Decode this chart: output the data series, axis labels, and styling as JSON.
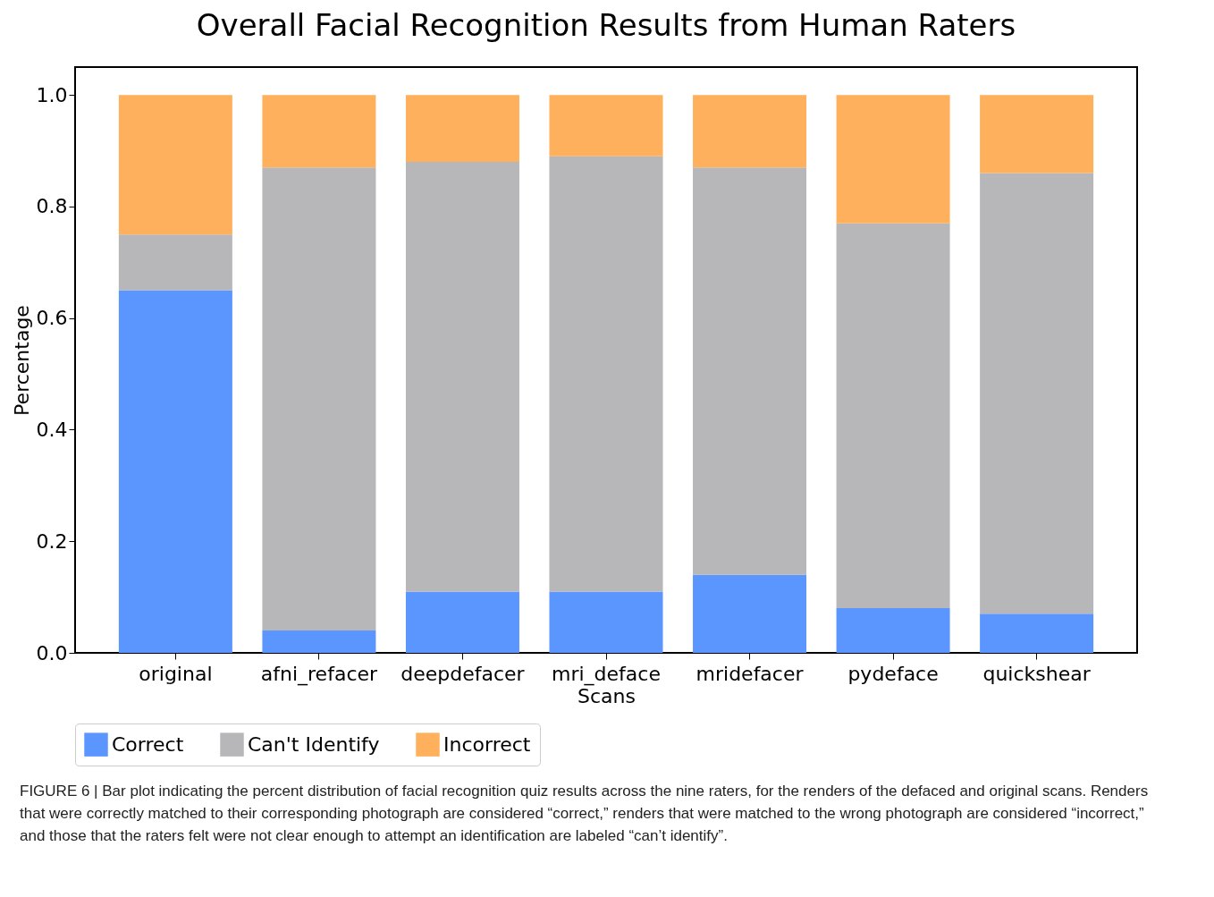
{
  "chart_data": {
    "type": "bar",
    "stacked": true,
    "title": "Overall Facial Recognition Results from Human Raters",
    "xlabel": "Scans",
    "ylabel": "Percentage",
    "categories": [
      "original",
      "afni_refacer",
      "deepdefacer",
      "mri_deface",
      "mridefacer",
      "pydeface",
      "quickshear"
    ],
    "series": [
      {
        "name": "Correct",
        "color": "#5b95fe",
        "values": [
          0.65,
          0.04,
          0.11,
          0.11,
          0.14,
          0.08,
          0.07
        ]
      },
      {
        "name": "Can't Identify",
        "color": "#b7b6b8",
        "values": [
          0.1,
          0.83,
          0.77,
          0.78,
          0.73,
          0.69,
          0.79
        ]
      },
      {
        "name": "Incorrect",
        "color": "#feb05c",
        "values": [
          0.25,
          0.13,
          0.12,
          0.11,
          0.13,
          0.23,
          0.14
        ]
      }
    ],
    "ylim": [
      0,
      1.05
    ],
    "yticks": [
      {
        "value": 0,
        "label": "0.0"
      },
      {
        "value": 0.2,
        "label": "0.2"
      },
      {
        "value": 0.4,
        "label": "0.4"
      },
      {
        "value": 0.6,
        "label": "0.6"
      },
      {
        "value": 0.8,
        "label": "0.8"
      },
      {
        "value": 1,
        "label": "1.0"
      }
    ],
    "grid": false,
    "legend": "bottom",
    "annotations": [
      "FIGURE 6 | Bar plot indicating the percent distribution of facial recognition quiz results across the nine raters, for the renders of the defaced and original scans. Renders that were correctly matched to their corresponding photograph are considered “correct,” renders that were matched to the wrong photograph are considered “incorrect,” and those that the raters felt were not clear enough to attempt an identification are labeled “can’t identify”."
    ]
  }
}
